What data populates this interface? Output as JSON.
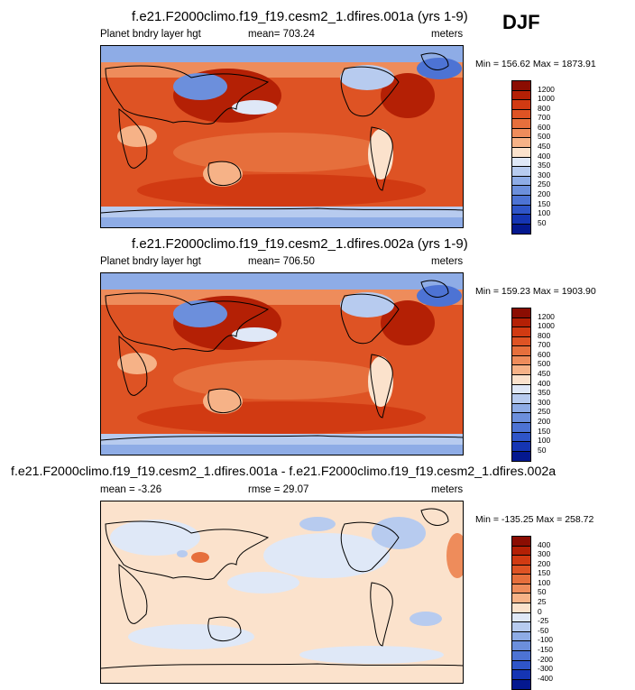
{
  "season": "DJF",
  "panels": [
    {
      "title": "f.e21.F2000climo.f19_f19.cesm2_1.dfires.001a (yrs 1-9)",
      "left_label": "Planet bndry layer hgt",
      "center_label": "mean= 703.24",
      "right_label": "meters",
      "minmax": "Min = 156.62 Max = 1873.91",
      "colorbar_labels": [
        "1200",
        "1000",
        "800",
        "700",
        "600",
        "500",
        "450",
        "400",
        "350",
        "300",
        "250",
        "200",
        "150",
        "100",
        "50"
      ],
      "colorbar_colors": [
        "#8b0d02",
        "#b42005",
        "#d13a12",
        "#de5324",
        "#e66f3c",
        "#ee8c5b",
        "#f6b287",
        "#fbe2cc",
        "#dfe8f7",
        "#b7cbef",
        "#8eace6",
        "#6c8fdc",
        "#4d73d4",
        "#2f55c8",
        "#1535b3",
        "#04188f"
      ]
    },
    {
      "title": "f.e21.F2000climo.f19_f19.cesm2_1.dfires.002a (yrs 1-9)",
      "left_label": "Planet bndry layer hgt",
      "center_label": "mean= 706.50",
      "right_label": "meters",
      "minmax": "Min = 159.23 Max = 1903.90",
      "colorbar_labels": [
        "1200",
        "1000",
        "800",
        "700",
        "600",
        "500",
        "450",
        "400",
        "350",
        "300",
        "250",
        "200",
        "150",
        "100",
        "50"
      ],
      "colorbar_colors": [
        "#8b0d02",
        "#b42005",
        "#d13a12",
        "#de5324",
        "#e66f3c",
        "#ee8c5b",
        "#f6b287",
        "#fbe2cc",
        "#dfe8f7",
        "#b7cbef",
        "#8eace6",
        "#6c8fdc",
        "#4d73d4",
        "#2f55c8",
        "#1535b3",
        "#04188f"
      ]
    },
    {
      "title": "f.e21.F2000climo.f19_f19.cesm2_1.dfires.001a - f.e21.F2000climo.f19_f19.cesm2_1.dfires.002a",
      "left_label": "mean =  -3.26",
      "center_label": "rmse =  29.07",
      "right_label": "meters",
      "minmax": "Min = -135.25 Max = 258.72",
      "colorbar_labels": [
        "400",
        "300",
        "200",
        "150",
        "100",
        "50",
        "25",
        "0",
        "-25",
        "-50",
        "-100",
        "-150",
        "-200",
        "-300",
        "-400"
      ],
      "colorbar_colors": [
        "#8b0d02",
        "#b42005",
        "#d13a12",
        "#de5324",
        "#e66f3c",
        "#ee8c5b",
        "#f6b287",
        "#fbe2cc",
        "#dfe8f7",
        "#b7cbef",
        "#8eace6",
        "#6c8fdc",
        "#4d73d4",
        "#2f55c8",
        "#1535b3",
        "#04188f"
      ]
    }
  ]
}
